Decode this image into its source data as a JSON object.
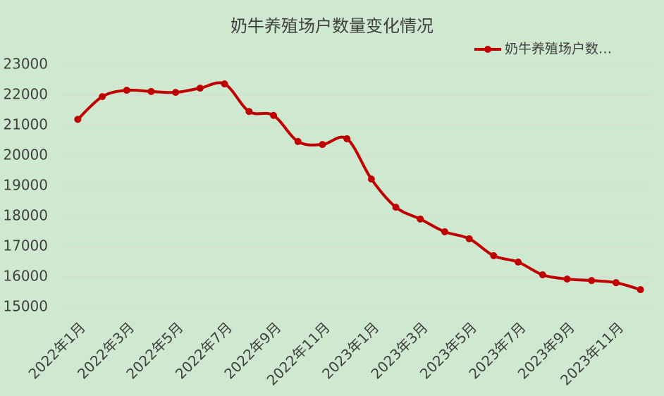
{
  "chart_data": {
    "type": "line",
    "title": "奶牛养殖场户数量变化情况",
    "categories": [
      "2022年1月",
      null,
      "2022年3月",
      null,
      "2022年5月",
      null,
      "2022年7月",
      null,
      "2022年9月",
      null,
      "2022年11月",
      null,
      "2023年1月",
      null,
      "2023年3月",
      null,
      "2023年5月",
      null,
      "2023年7月",
      null,
      "2023年9月",
      null,
      "2023年11月",
      null
    ],
    "series": [
      {
        "name": "奶牛养殖场户数…",
        "color": "#c00000",
        "values": [
          21200,
          21950,
          22160,
          22120,
          22090,
          22230,
          22370,
          21460,
          21330,
          20470,
          20370,
          20560,
          19230,
          18300,
          17910,
          17490,
          17260,
          16700,
          16490,
          16070,
          15930,
          15880,
          15810,
          15580
        ]
      }
    ],
    "ylim": [
      15000,
      23000
    ],
    "yticks": [
      15000,
      16000,
      17000,
      18000,
      19000,
      20000,
      21000,
      22000,
      23000
    ],
    "grid": true,
    "legend": "top-right",
    "background": "#cfe8d0"
  }
}
